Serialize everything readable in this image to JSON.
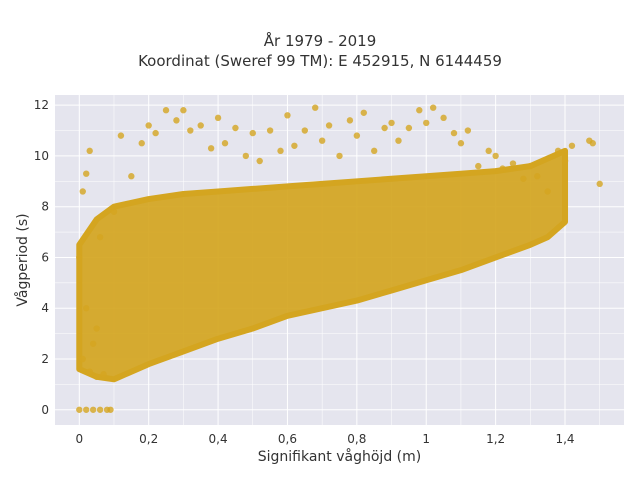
{
  "chart_data": {
    "type": "scatter",
    "title_line1": "År 1979 - 2019",
    "title_line2": "Koordinat (Sweref 99 TM): E 452915, N 6144459",
    "xlabel": "Signifikant våghöjd (m)",
    "ylabel": "Vågperiod (s)",
    "xlim": [
      -0.07,
      1.57
    ],
    "ylim": [
      -0.6,
      12.4
    ],
    "x_ticks": [
      0,
      0.2,
      0.4,
      0.6,
      0.8,
      1.0,
      1.2,
      1.4
    ],
    "x_tick_labels": [
      "0",
      "0,2",
      "0,4",
      "0,6",
      "0,8",
      "1",
      "1,2",
      "1,4"
    ],
    "y_ticks": [
      0,
      2,
      4,
      6,
      8,
      10,
      12
    ],
    "y_tick_labels": [
      "0",
      "2",
      "4",
      "6",
      "8",
      "10",
      "12"
    ],
    "grid": true,
    "background_color": "#e5e5ee",
    "grid_color": "#ffffff",
    "marker_color": "#d4a520",
    "series": [
      {
        "note": "dense point cloud; representative sample of observed (Hs, Tp) pairs",
        "x": [
          0.0,
          0.02,
          0.04,
          0.06,
          0.08,
          0.09,
          0.01,
          0.03,
          0.05,
          0.07,
          0.0,
          0.01,
          0.02,
          0.03,
          0.02,
          0.05,
          0.04,
          0.06,
          0.1,
          0.12,
          0.15,
          0.18,
          0.2,
          0.22,
          0.25,
          0.28,
          0.3,
          0.32,
          0.35,
          0.38,
          0.4,
          0.42,
          0.45,
          0.48,
          0.5,
          0.52,
          0.55,
          0.58,
          0.6,
          0.62,
          0.65,
          0.68,
          0.7,
          0.72,
          0.75,
          0.78,
          0.8,
          0.82,
          0.85,
          0.88,
          0.9,
          0.92,
          0.95,
          0.98,
          1.0,
          1.02,
          1.05,
          1.08,
          1.1,
          1.12,
          1.15,
          1.18,
          1.2,
          1.22,
          1.25,
          1.28,
          1.3,
          1.32,
          1.35,
          1.38,
          1.4,
          1.42,
          1.47,
          1.48,
          1.5
        ],
        "y": [
          0,
          0,
          0,
          0,
          0,
          0,
          2.0,
          1.5,
          1.3,
          1.4,
          6.0,
          8.6,
          9.3,
          10.2,
          4.0,
          3.2,
          2.6,
          6.8,
          7.8,
          10.8,
          9.2,
          10.5,
          11.2,
          10.9,
          11.8,
          11.4,
          11.8,
          11.0,
          11.2,
          10.3,
          11.5,
          10.5,
          11.1,
          10.0,
          10.9,
          9.8,
          11.0,
          10.2,
          11.6,
          10.4,
          11.0,
          11.9,
          10.6,
          11.2,
          10.0,
          11.4,
          10.8,
          11.7,
          10.2,
          11.1,
          11.3,
          10.6,
          11.1,
          11.8,
          11.3,
          11.9,
          11.5,
          10.9,
          10.5,
          11.0,
          9.6,
          10.2,
          10.0,
          9.5,
          9.7,
          9.1,
          9.6,
          9.2,
          8.6,
          10.2,
          9.8,
          10.4,
          10.6,
          10.5,
          8.9
        ]
      }
    ],
    "envelope": {
      "x": [
        0.0,
        0.05,
        0.1,
        0.2,
        0.3,
        0.4,
        0.5,
        0.6,
        0.7,
        0.8,
        0.9,
        1.0,
        1.1,
        1.2,
        1.3,
        1.35,
        1.4
      ],
      "y_low": [
        1.6,
        1.3,
        1.2,
        1.8,
        2.3,
        2.8,
        3.2,
        3.7,
        4.0,
        4.3,
        4.7,
        5.1,
        5.5,
        6.0,
        6.5,
        6.8,
        7.4
      ],
      "y_high": [
        6.5,
        7.5,
        8.0,
        8.3,
        8.5,
        8.6,
        8.7,
        8.8,
        8.9,
        9.0,
        9.1,
        9.2,
        9.3,
        9.4,
        9.6,
        9.9,
        10.2
      ]
    }
  }
}
